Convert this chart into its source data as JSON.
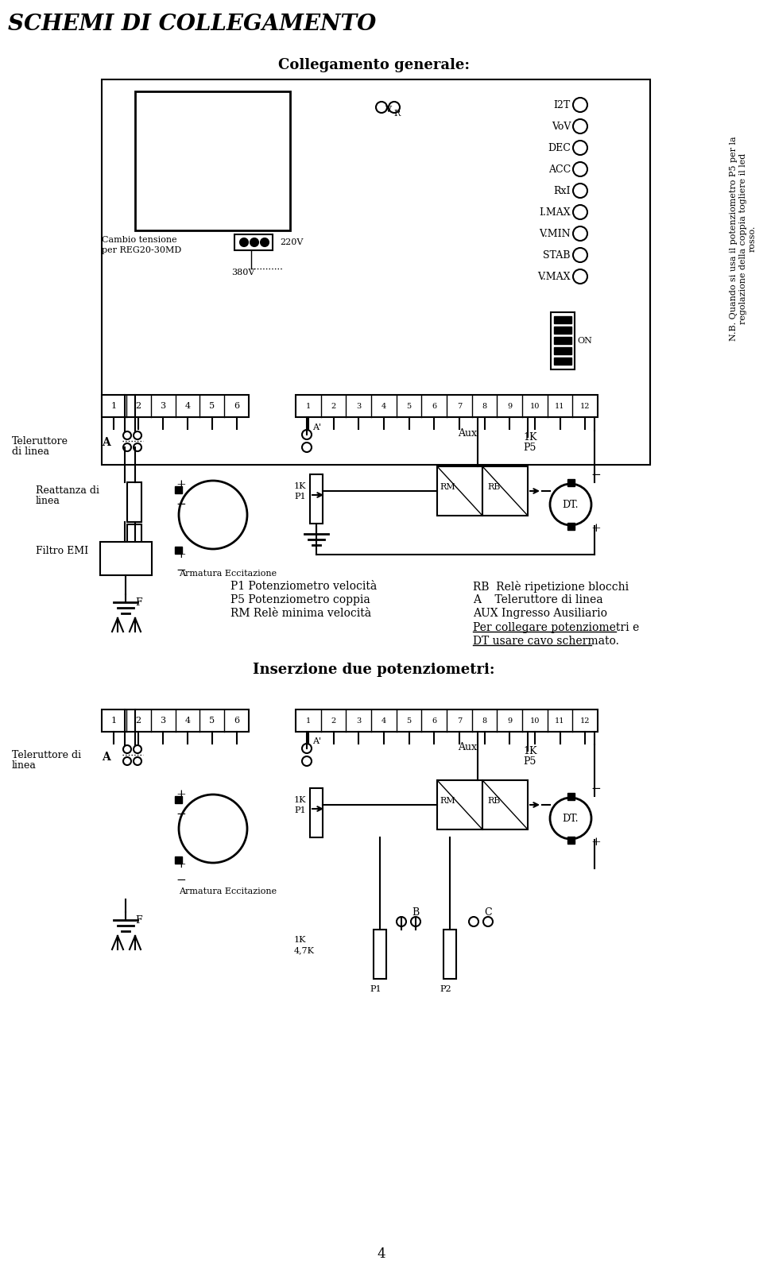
{
  "title": "SCHEMI DI COLLEGAMENTO",
  "subtitle1": "Collegamento generale:",
  "subtitle2": "Inserzione due potenziometri:",
  "bg_color": "#ffffff",
  "text_color": "#000000",
  "legend_lines": [
    "P1 Potenziometro velocità",
    "P5 Potenziometro coppia",
    "RM Relè minima velocità"
  ],
  "legend_lines2": [
    "RB  Relè ripetizione blocchi",
    "A    Teleruttore di linea",
    "AUX Ingresso Ausiliario"
  ],
  "legend_underlined": [
    "Per collegare potenziometri e",
    "DT usare cavo schermato."
  ],
  "nb_text": "N.B. Quando si usa il potenziometro P5 per la\nregolazione della coppia togliere il led\nrosso.",
  "connector1_labels": [
    "1",
    "2",
    "3",
    "4",
    "5",
    "6"
  ],
  "connector2_labels": [
    "1",
    "2",
    "3",
    "4",
    "5",
    "6",
    "7",
    "8",
    "9",
    "10",
    "11",
    "12"
  ],
  "led_labels": [
    "I2T",
    "VoV",
    "DEC",
    "ACC",
    "RxI",
    "I.MAX",
    "V.MIN",
    "STAB",
    "V.MAX"
  ],
  "page_number": "4"
}
